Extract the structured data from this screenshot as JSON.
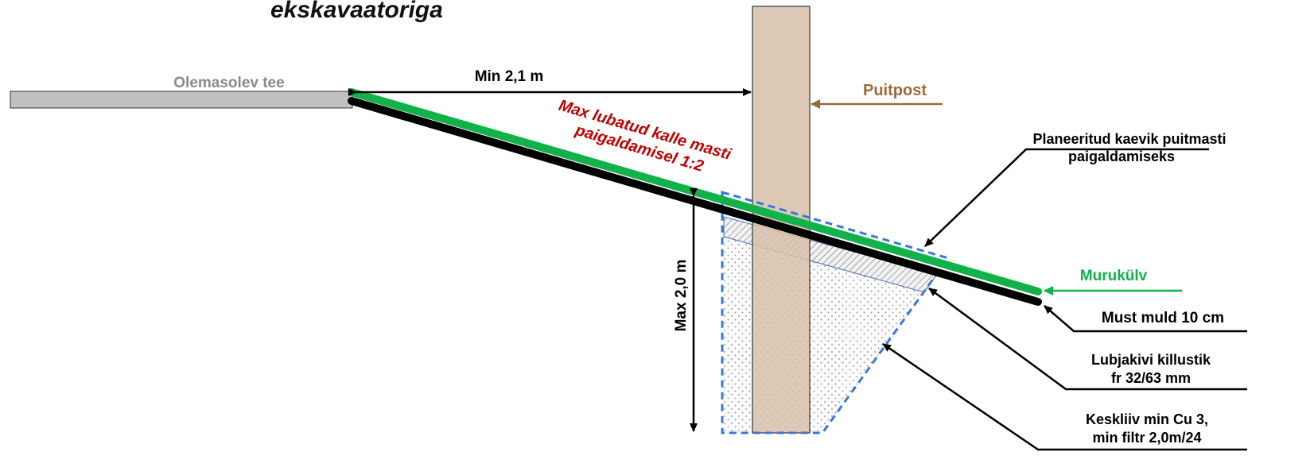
{
  "title": "ekskavaatoriga",
  "labels": {
    "existing_road": "Olemasolev tee",
    "min_distance": "Min 2,1 m",
    "wooden_post": "Puitpost",
    "planned_trench_line1": "Planeeritud kaevik puitmasti",
    "planned_trench_line2": "paigaldamiseks",
    "max_slope_line1": "Max  lubatud kalle masti",
    "max_slope_line2": "paigaldamisel 1:2",
    "max_depth": "Max 2,0 m",
    "turf": "Murukülv",
    "topsoil": "Must muld 10 cm",
    "crushed_stone_line1": "Lubjakivi killustik",
    "crushed_stone_line2": "fr 32/63 mm",
    "sand_line1": "Keskliiv min Cu 3,",
    "sand_line2": "min filtr 2,0m/24"
  },
  "colors": {
    "road_fill": "#c0c0c0",
    "road_label": "#8a8a8a",
    "turf": "#12b24b",
    "topsoil": "#000000",
    "post_fill": "#d8c0aa",
    "post_label": "#9a6a3a",
    "slope_label": "#c00000",
    "trench_outline": "#3a78d8"
  }
}
